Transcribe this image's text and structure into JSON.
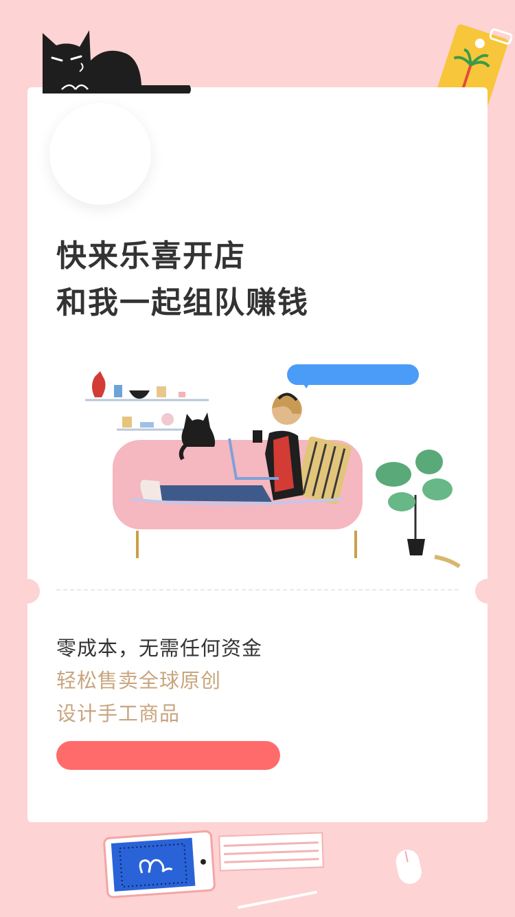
{
  "hero": {
    "headline_line1": "快来乐喜开店",
    "headline_line2": "和我一起组队赚钱"
  },
  "info": {
    "line1": "零成本，无需任何资金",
    "line2": "轻松售卖全球原创",
    "line3": "设计手工商品"
  },
  "cta": {
    "label": ""
  },
  "colors": {
    "background": "#fdd3d3",
    "card": "#ffffff",
    "headline": "#333333",
    "accent_gold": "#c8a57e",
    "cta": "#ff6b6b",
    "bubble": "#4a9cf7"
  },
  "decorations": [
    "black-cat-icon",
    "luggage-tag-icon",
    "woman-on-sofa-illustration",
    "speech-bubble",
    "potted-plant-icon",
    "tablet-icon",
    "notebook-icon",
    "mouse-icon",
    "pen-icon"
  ]
}
